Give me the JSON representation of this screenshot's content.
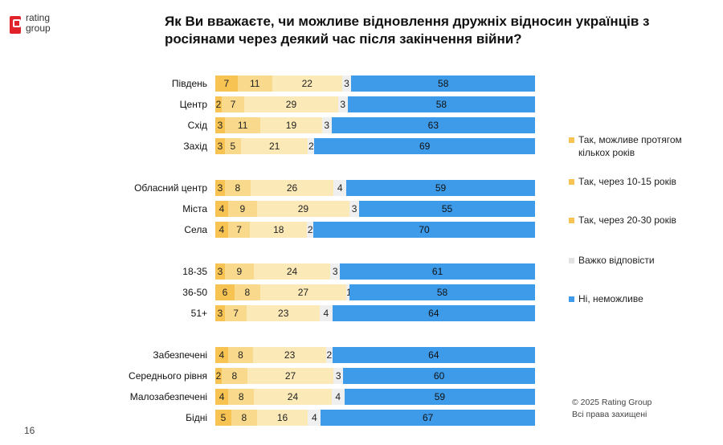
{
  "logo": {
    "line1": "rating",
    "line2": "group"
  },
  "title": "Як Ви вважаєте, чи можливе відновлення дружніх відносин українців з росіянами через деякий час після закінчення війни?",
  "footer": {
    "copyright": "© 2025 Rating Group",
    "rights": "Всі права захищені"
  },
  "page_number": "16",
  "colors": [
    "#f7c453",
    "#f9da8c",
    "#fce9b8",
    "#efefef",
    "#3e9be9"
  ],
  "chart_data": {
    "type": "bar",
    "orientation": "horizontal",
    "stacked": true,
    "xlim": [
      0,
      100
    ],
    "legend_position": "right",
    "categories": [
      "Південь",
      "Центр",
      "Схід",
      "Захід",
      "Обласний центр",
      "Міста",
      "Села",
      "18-35",
      "36-50",
      "51+",
      "Забезпечені",
      "Середнього рівня",
      "Малозабезпечені",
      "Бідні"
    ],
    "series": [
      {
        "name": "Так, можливе протягом кількох років",
        "values": [
          7,
          2,
          3,
          3,
          3,
          4,
          4,
          3,
          6,
          3,
          4,
          2,
          4,
          5
        ]
      },
      {
        "name": "Так, через 10-15 років",
        "values": [
          11,
          7,
          11,
          5,
          8,
          9,
          7,
          9,
          8,
          7,
          8,
          8,
          8,
          8
        ]
      },
      {
        "name": "Так, через 20-30 років",
        "values": [
          22,
          29,
          19,
          21,
          26,
          29,
          18,
          24,
          27,
          23,
          23,
          27,
          24,
          16
        ]
      },
      {
        "name": "Важко відповісти",
        "values": [
          3,
          3,
          3,
          2,
          4,
          3,
          2,
          3,
          1,
          4,
          2,
          3,
          4,
          4
        ]
      },
      {
        "name": "Ні, неможливе",
        "values": [
          58,
          58,
          63,
          69,
          59,
          55,
          70,
          61,
          58,
          64,
          64,
          60,
          59,
          67
        ]
      }
    ]
  }
}
